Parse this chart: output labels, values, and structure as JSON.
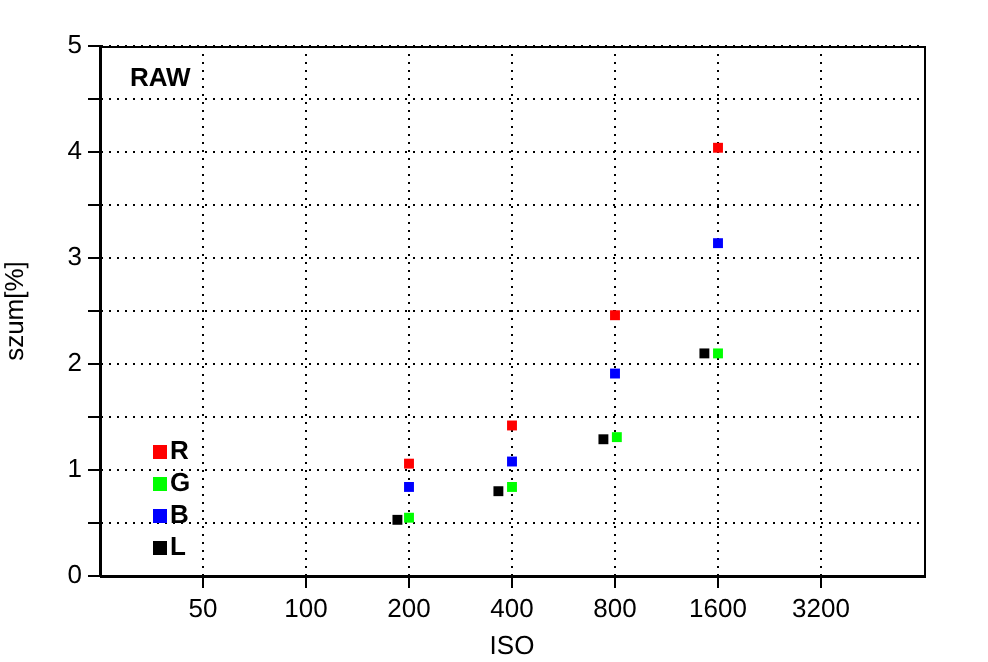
{
  "chart_data": {
    "type": "scatter",
    "xlabel": "ISO",
    "ylabel": "szum[%]",
    "annotations": [
      "RAW"
    ],
    "log": "x",
    "grid": true,
    "legend": "bottom left",
    "marker": "square",
    "xlim": [
      25,
      6400
    ],
    "xticks": [
      50,
      100,
      200,
      400,
      800,
      1600,
      3200
    ],
    "ylim": [
      0,
      5
    ],
    "yticks": [
      0,
      {
        "value": 0.5,
        "label": null
      },
      1,
      {
        "value": 1.5,
        "label": null
      },
      2,
      {
        "value": 2.5,
        "label": null
      },
      3,
      {
        "value": 3.5,
        "label": null
      },
      4,
      {
        "value": 4.5,
        "label": null
      },
      5
    ],
    "series": [
      {
        "name": "R",
        "color": "#ff0000",
        "x": [
          200,
          400,
          800,
          1600
        ],
        "values": [
          1.06,
          1.42,
          2.46,
          4.04
        ]
      },
      {
        "name": "G",
        "color": "#00ff00",
        "x": [
          200,
          400,
          810,
          1600
        ],
        "values": [
          0.55,
          0.84,
          1.31,
          2.1
        ]
      },
      {
        "name": "B",
        "color": "#0000ff",
        "x": [
          200,
          400,
          800,
          1600
        ],
        "values": [
          0.84,
          1.08,
          1.91,
          3.14
        ]
      },
      {
        "name": "L",
        "color": "#000000",
        "x": [
          185,
          365,
          740,
          1460
        ],
        "values": [
          0.53,
          0.8,
          1.29,
          2.1
        ]
      }
    ]
  }
}
